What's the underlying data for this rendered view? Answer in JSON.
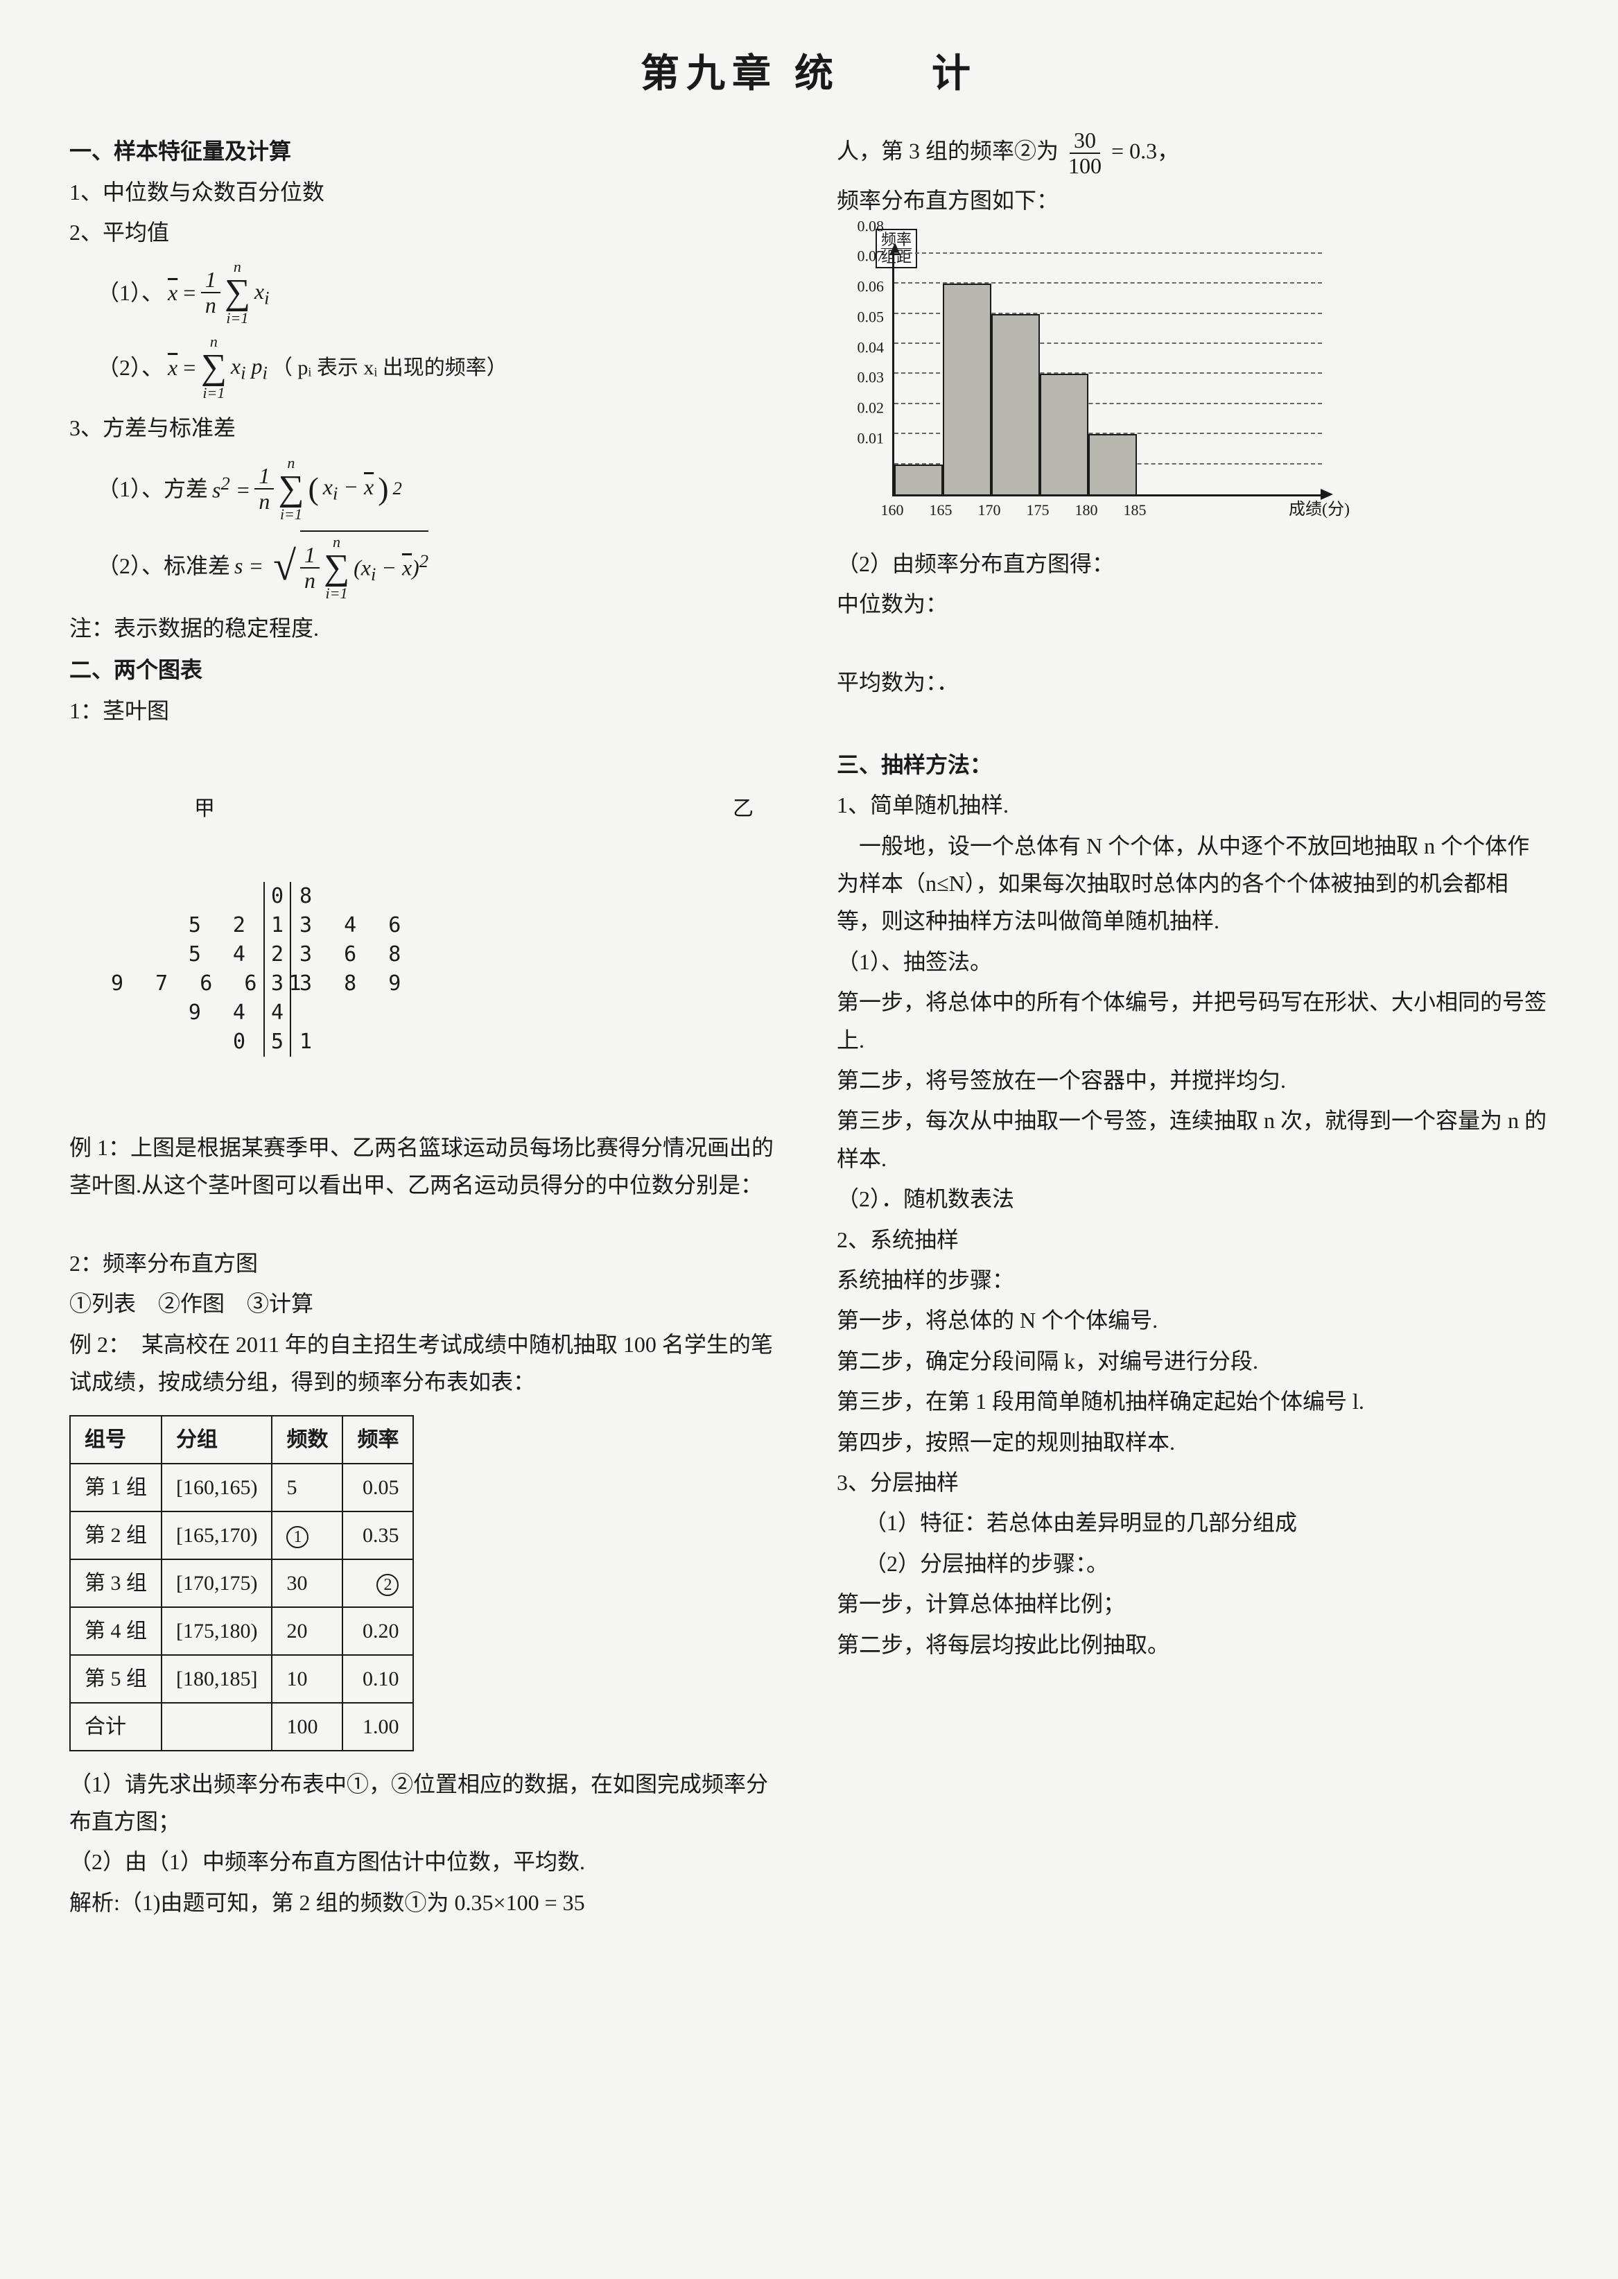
{
  "title": "第九章 统　　计",
  "left": {
    "sec1_h": "一、样本特征量及计算",
    "p1": "1、中位数与众数百分位数",
    "p2": "2、平均值",
    "f1_label": "（1）、",
    "f2_label": "（2）、",
    "f2_note": "（ pᵢ 表示 xᵢ 出现的频率）",
    "p3": "3、方差与标准差",
    "f3_label": "（1）、方差 ",
    "f4_label": "（2）、标准差 ",
    "note": "注：表示数据的稳定程度.",
    "sec2_h": "二、两个图表",
    "stem_h": "1：茎叶图",
    "stem_head_l": "甲",
    "stem_head_r": "乙",
    "stem_rows": [
      {
        "l": "",
        "m": "0",
        "r": "8"
      },
      {
        "l": "5 2",
        "m": "1",
        "r": "3 4 6"
      },
      {
        "l": "5 4",
        "m": "2",
        "r": "3 6 8"
      },
      {
        "l": "9 7 6 6 1",
        "m": "3",
        "r": "3 8 9"
      },
      {
        "l": "9 4",
        "m": "4",
        "r": ""
      },
      {
        "l": "0",
        "m": "5",
        "r": "1"
      }
    ],
    "ex1": "例 1：上图是根据某赛季甲、乙两名篮球运动员每场比赛得分情况画出的茎叶图.从这个茎叶图可以看出甲、乙两名运动员得分的中位数分别是：",
    "hist_h": "2：频率分布直方图",
    "hist_steps": "①列表　②作图　③计算",
    "ex2": "例 2：　某高校在 2011 年的自主招生考试成绩中随机抽取 100 名学生的笔试成绩，按成绩分组，得到的频率分布表如表：",
    "table": {
      "headers": [
        "组号",
        "分组",
        "频数",
        "频率"
      ],
      "rows": [
        [
          "第 1 组",
          "[160,165)",
          "5",
          "0.05"
        ],
        [
          "第 2 组",
          "[165,170)",
          "①",
          "0.35"
        ],
        [
          "第 3 组",
          "[170,175)",
          "30",
          "②"
        ],
        [
          "第 4 组",
          "[175,180)",
          "20",
          "0.20"
        ],
        [
          "第 5 组",
          "[180,185]",
          "10",
          "0.10"
        ],
        [
          "合计",
          "",
          "100",
          "1.00"
        ]
      ],
      "col_align": [
        "left",
        "center",
        "left",
        "right"
      ]
    },
    "q1": "（1）请先求出频率分布表中①，②位置相应的数据，在如图完成频率分布直方图；",
    "q2": "（2）由（1）中频率分布直方图估计中位数，平均数.",
    "sol": "解析:（1)由题可知，第 2 组的频数①为 0.35×100 = 35"
  },
  "right": {
    "cont": "人，第 3 组的频率②为 ",
    "cont_frac_num": "30",
    "cont_frac_den": "100",
    "cont_eq": " = 0.3，",
    "hist_caption": "频率分布直方图如下：",
    "chart": {
      "y_label_l1": "频率",
      "y_label_l2": "组距",
      "y_ticks": [
        "0.01",
        "0.02",
        "0.03",
        "0.04",
        "0.05",
        "0.06",
        "0.07",
        "0.08"
      ],
      "y_max": 0.08,
      "x_ticks": [
        "160",
        "165",
        "170",
        "175",
        "180",
        "185"
      ],
      "bars": [
        0.01,
        0.07,
        0.06,
        0.04,
        0.02
      ],
      "bar_color": "#b8b8b0",
      "grid_color": "#666666",
      "axis_color": "#1a1a1a",
      "x_label": "成绩(分)"
    },
    "ans2a": "（2）由频率分布直方图得：",
    "ans2b": "中位数为：",
    "ans2c": "平均数为：．",
    "sec3_h": "三、抽样方法：",
    "m1": "1、简单随机抽样.",
    "m1_desc": "　一般地，设一个总体有 N 个个体，从中逐个不放回地抽取 n 个个体作为样本（n≤N），如果每次抽取时总体内的各个个体被抽到的机会都相等，则这种抽样方法叫做简单随机抽样.",
    "m1_1": "（1）、抽签法。",
    "m1_1a": "第一步，将总体中的所有个体编号，并把号码写在形状、大小相同的号签上.",
    "m1_1b": "第二步，将号签放在一个容器中，并搅拌均匀.",
    "m1_1c": "第三步，每次从中抽取一个号签，连续抽取 n 次，就得到一个容量为 n 的样本.",
    "m1_2": "（2）．随机数表法",
    "m2": "2、系统抽样",
    "m2_h": "系统抽样的步骤：",
    "m2_a": "第一步，将总体的 N 个个体编号.",
    "m2_b": "第二步，确定分段间隔 k，对编号进行分段.",
    "m2_c": "第三步，在第 1 段用简单随机抽样确定起始个体编号 l.",
    "m2_d": "第四步，按照一定的规则抽取样本.",
    "m3": "3、分层抽样",
    "m3_1": "（1）特征：若总体由差异明显的几部分组成",
    "m3_2": "（2）分层抽样的步骤：。",
    "m3_a": "第一步，计算总体抽样比例；",
    "m3_b": "第二步，将每层均按此比例抽取。"
  }
}
